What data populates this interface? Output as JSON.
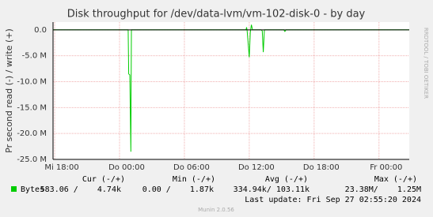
{
  "chart_data": {
    "type": "line",
    "title": "Disk throughput for /dev/data-lvm/vm-102-disk-0 - by day",
    "y_label": "Pr second read (-) / write (+)",
    "side_label": "RRDTOOL / TOBI OETIKER",
    "x": [
      17.85,
      24.8,
      24.85,
      24.95,
      25.05,
      25.1,
      35.7,
      35.75,
      35.8,
      36.0,
      36.1,
      36.2,
      36.3,
      37.1,
      37.2,
      37.3,
      37.4,
      39.2,
      39.3,
      39.4,
      50.8
    ],
    "series": [
      {
        "name": "Bytes",
        "color": "#00cc00",
        "values": [
          0,
          0,
          -8500000,
          -8700000,
          -23500000,
          0,
          0,
          500000,
          0,
          -5300000,
          -500000,
          1000000,
          0,
          0,
          -200000,
          -4300000,
          0,
          0,
          -300000,
          0,
          0
        ]
      }
    ],
    "xlim": [
      17.85,
      50.8
    ],
    "xticks": [
      {
        "value": 18,
        "label": "Mi 18:00"
      },
      {
        "value": 24,
        "label": "Do 00:00"
      },
      {
        "value": 30,
        "label": "Do 06:00"
      },
      {
        "value": 36,
        "label": "Do 12:00"
      },
      {
        "value": 42,
        "label": "Do 18:00"
      },
      {
        "value": 48,
        "label": "Fr 00:00"
      }
    ],
    "ylim": [
      -25000000,
      1500000
    ],
    "yticks": [
      {
        "value": 0,
        "label": "0.0"
      },
      {
        "value": -5000000,
        "label": "-5.0 M"
      },
      {
        "value": -10000000,
        "label": "-10.0 M"
      },
      {
        "value": -15000000,
        "label": "-15.0 M"
      },
      {
        "value": -20000000,
        "label": "-20.0 M"
      },
      {
        "value": -25000000,
        "label": "-25.0 M"
      }
    ],
    "grid": true,
    "stats_headers": [
      "Cur (-/+)",
      "Min (-/+)",
      "Avg (-/+)",
      "Max (-/+)"
    ],
    "stats": [
      "583.06 /    4.74k",
      "0.00 /    1.87k",
      "334.94k/ 103.11k",
      "23.38M/    1.25M"
    ],
    "last_update": "Last update: Fri Sep 27 02:55:20 2024",
    "footer": "Munin 2.0.56"
  }
}
